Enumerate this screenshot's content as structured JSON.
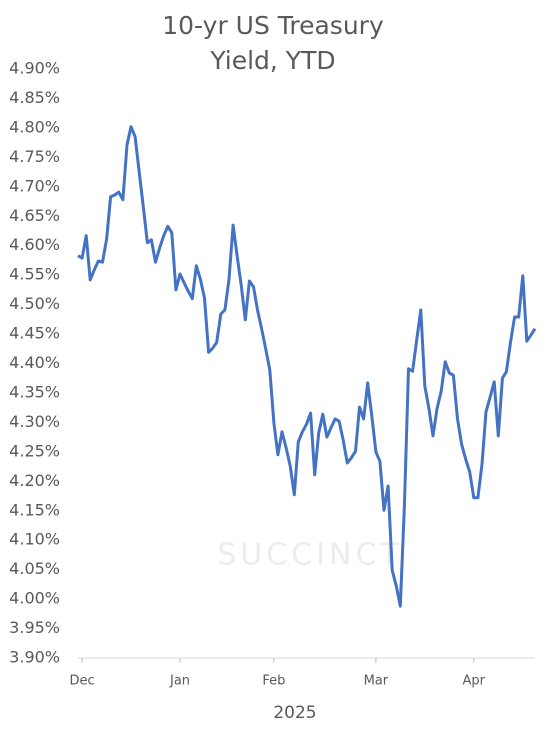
{
  "chart_data": {
    "type": "line",
    "title": "10-yr US Treasury Yield, YTD",
    "x_label": "2025",
    "watermark": "SUCCINCT",
    "categories": [
      null,
      "Dec",
      null,
      null,
      null,
      null,
      null,
      null,
      null,
      null,
      null,
      null,
      null,
      null,
      null,
      null,
      null,
      null,
      null,
      null,
      null,
      null,
      null,
      null,
      null,
      "Jan",
      null,
      null,
      null,
      null,
      null,
      null,
      null,
      null,
      null,
      null,
      null,
      null,
      null,
      null,
      null,
      null,
      null,
      null,
      null,
      null,
      null,
      null,
      "Feb",
      null,
      null,
      null,
      null,
      null,
      null,
      null,
      null,
      null,
      null,
      null,
      null,
      null,
      null,
      null,
      null,
      null,
      null,
      null,
      null,
      null,
      null,
      null,
      null,
      "Mar",
      null,
      null,
      null,
      null,
      null,
      null,
      null,
      null,
      null,
      null,
      null,
      null,
      null,
      null,
      null,
      null,
      null,
      null,
      null,
      null,
      null,
      null,
      null,
      "Apr",
      null,
      null,
      null,
      null,
      null,
      null,
      null,
      null,
      null,
      null,
      null,
      null,
      null,
      null,
      null
    ],
    "series": [
      {
        "name": "10-yr US Treasury Yield",
        "color": "#4472c4",
        "values": [
          4.583,
          4.579,
          4.617,
          4.542,
          4.559,
          4.574,
          4.572,
          4.611,
          4.683,
          4.686,
          4.691,
          4.678,
          4.771,
          4.802,
          4.785,
          4.725,
          4.666,
          4.605,
          4.61,
          4.572,
          4.596,
          4.617,
          4.633,
          4.622,
          4.525,
          4.552,
          4.537,
          4.523,
          4.51,
          4.566,
          4.543,
          4.511,
          4.419,
          4.426,
          4.436,
          4.484,
          4.491,
          4.543,
          4.635,
          4.583,
          4.533,
          4.474,
          4.54,
          4.53,
          4.491,
          4.459,
          4.425,
          4.389,
          4.299,
          4.245,
          4.284,
          4.257,
          4.226,
          4.177,
          4.267,
          4.284,
          4.297,
          4.316,
          4.211,
          4.282,
          4.314,
          4.275,
          4.291,
          4.306,
          4.302,
          4.27,
          4.231,
          4.24,
          4.251,
          4.326,
          4.306,
          4.367,
          4.311,
          4.25,
          4.234,
          4.151,
          4.192,
          4.049,
          4.022,
          3.988,
          4.158,
          4.391,
          4.387,
          4.44,
          4.491,
          4.362,
          4.324,
          4.277,
          4.324,
          4.353,
          4.403,
          4.384,
          4.38,
          4.306,
          4.263,
          4.238,
          4.216,
          4.172,
          4.172,
          4.229,
          4.318,
          4.343,
          4.369,
          4.277,
          4.375,
          4.386,
          4.436,
          4.479,
          4.479,
          4.549,
          4.438,
          4.448,
          4.459
        ]
      }
    ],
    "ylim": [
      3.9,
      4.9
    ],
    "yticks": [
      {
        "value": 3.9,
        "label": "3.90%"
      },
      {
        "value": 3.95,
        "label": "3.95%"
      },
      {
        "value": 4.0,
        "label": "4.00%"
      },
      {
        "value": 4.05,
        "label": "4.05%"
      },
      {
        "value": 4.1,
        "label": "4.10%"
      },
      {
        "value": 4.15,
        "label": "4.15%"
      },
      {
        "value": 4.2,
        "label": "4.20%"
      },
      {
        "value": 4.25,
        "label": "4.25%"
      },
      {
        "value": 4.3,
        "label": "4.30%"
      },
      {
        "value": 4.35,
        "label": "4.35%"
      },
      {
        "value": 4.4,
        "label": "4.40%"
      },
      {
        "value": 4.45,
        "label": "4.45%"
      },
      {
        "value": 4.5,
        "label": "4.50%"
      },
      {
        "value": 4.55,
        "label": "4.55%"
      },
      {
        "value": 4.6,
        "label": "4.60%"
      },
      {
        "value": 4.65,
        "label": "4.65%"
      },
      {
        "value": 4.7,
        "label": "4.70%"
      },
      {
        "value": 4.75,
        "label": "4.75%"
      },
      {
        "value": 4.8,
        "label": "4.80%"
      },
      {
        "value": 4.85,
        "label": "4.85%"
      },
      {
        "value": 4.9,
        "label": "4.90%"
      }
    ],
    "grid": false
  }
}
